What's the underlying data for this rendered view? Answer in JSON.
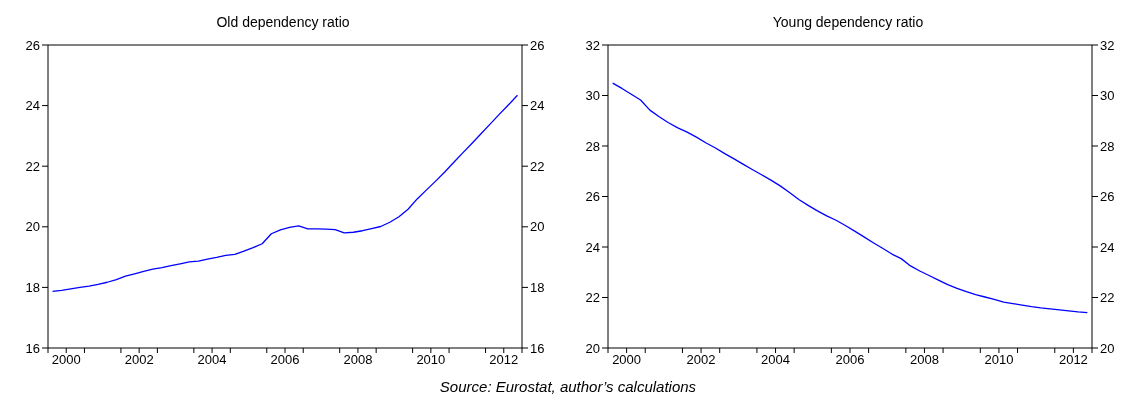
{
  "chart_data": [
    {
      "type": "line",
      "title": "Old dependency ratio",
      "x": [
        2000.125,
        2000.375,
        2000.625,
        2000.875,
        2001.125,
        2001.375,
        2001.625,
        2001.875,
        2002.125,
        2002.375,
        2002.625,
        2002.875,
        2003.125,
        2003.375,
        2003.625,
        2003.875,
        2004.125,
        2004.375,
        2004.625,
        2004.875,
        2005.125,
        2005.375,
        2005.625,
        2005.875,
        2006.125,
        2006.375,
        2006.625,
        2006.875,
        2007.125,
        2007.375,
        2007.625,
        2007.875,
        2008.125,
        2008.375,
        2008.625,
        2008.875,
        2009.125,
        2009.375,
        2009.625,
        2009.875,
        2010.125,
        2010.375,
        2010.625,
        2010.875,
        2011.125,
        2011.375,
        2011.625,
        2011.875,
        2012.125,
        2012.375,
        2012.625,
        2012.875
      ],
      "series": [
        {
          "color": "#0000ff",
          "values": [
            17.87,
            17.9,
            17.95,
            18.0,
            18.04,
            18.1,
            18.17,
            18.26,
            18.37,
            18.45,
            18.53,
            18.6,
            18.65,
            18.72,
            18.78,
            18.84,
            18.87,
            18.93,
            18.99,
            19.06,
            19.09,
            19.2,
            19.31,
            19.44,
            19.77,
            19.9,
            19.98,
            20.03,
            19.93,
            19.93,
            19.92,
            19.91,
            19.8,
            19.82,
            19.87,
            19.94,
            20.01,
            20.15,
            20.33,
            20.58,
            20.92,
            21.21,
            21.5,
            21.8,
            22.12,
            22.44,
            22.75,
            23.07,
            23.39,
            23.71,
            24.02,
            24.34
          ]
        }
      ],
      "xlim": [
        2000,
        2013
      ],
      "xticks": [
        {
          "value": 2000,
          "label": null
        },
        {
          "value": 2000.5,
          "label": "2000"
        },
        {
          "value": 2001,
          "label": null
        },
        {
          "value": 2002,
          "label": null
        },
        {
          "value": 2002.5,
          "label": "2002"
        },
        {
          "value": 2003,
          "label": null
        },
        {
          "value": 2004,
          "label": null
        },
        {
          "value": 2004.5,
          "label": "2004"
        },
        {
          "value": 2005,
          "label": null
        },
        {
          "value": 2006,
          "label": null
        },
        {
          "value": 2006.5,
          "label": "2006"
        },
        {
          "value": 2007,
          "label": null
        },
        {
          "value": 2008,
          "label": null
        },
        {
          "value": 2008.5,
          "label": "2008"
        },
        {
          "value": 2009,
          "label": null
        },
        {
          "value": 2010,
          "label": null
        },
        {
          "value": 2010.5,
          "label": "2010"
        },
        {
          "value": 2011,
          "label": null
        },
        {
          "value": 2012,
          "label": null
        },
        {
          "value": 2012.5,
          "label": "2012"
        },
        {
          "value": 2013,
          "label": null
        }
      ],
      "ylim": [
        16,
        26
      ],
      "yticks": [
        16,
        18,
        20,
        22,
        24,
        26
      ],
      "y2lim": [
        16,
        26
      ],
      "y2ticks": [
        16,
        18,
        20,
        22,
        24,
        26
      ],
      "annotations": [
        "Source: Eurostat, author’s calculations"
      ]
    },
    {
      "type": "line",
      "title": "Young dependency ratio",
      "x": [
        2000.125,
        2000.375,
        2000.625,
        2000.875,
        2001.125,
        2001.375,
        2001.625,
        2001.875,
        2002.125,
        2002.375,
        2002.625,
        2002.875,
        2003.125,
        2003.375,
        2003.625,
        2003.875,
        2004.125,
        2004.375,
        2004.625,
        2004.875,
        2005.125,
        2005.375,
        2005.625,
        2005.875,
        2006.125,
        2006.375,
        2006.625,
        2006.875,
        2007.125,
        2007.375,
        2007.625,
        2007.875,
        2008.125,
        2008.375,
        2008.625,
        2008.875,
        2009.125,
        2009.375,
        2009.625,
        2009.875,
        2010.125,
        2010.375,
        2010.625,
        2010.875,
        2011.125,
        2011.375,
        2011.625,
        2011.875,
        2012.125,
        2012.375,
        2012.625,
        2012.875
      ],
      "series": [
        {
          "color": "#0000ff",
          "values": [
            30.49,
            30.28,
            30.05,
            29.82,
            29.42,
            29.16,
            28.92,
            28.72,
            28.55,
            28.35,
            28.13,
            27.93,
            27.71,
            27.5,
            27.28,
            27.07,
            26.86,
            26.65,
            26.42,
            26.16,
            25.88,
            25.65,
            25.43,
            25.23,
            25.06,
            24.85,
            24.63,
            24.4,
            24.17,
            23.95,
            23.72,
            23.54,
            23.25,
            23.05,
            22.87,
            22.69,
            22.51,
            22.36,
            22.23,
            22.11,
            22.02,
            21.93,
            21.82,
            21.76,
            21.7,
            21.64,
            21.59,
            21.55,
            21.51,
            21.47,
            21.43,
            21.4
          ]
        }
      ],
      "xlim": [
        2000,
        2013
      ],
      "xticks": [
        {
          "value": 2000,
          "label": null
        },
        {
          "value": 2000.5,
          "label": "2000"
        },
        {
          "value": 2001,
          "label": null
        },
        {
          "value": 2002,
          "label": null
        },
        {
          "value": 2002.5,
          "label": "2002"
        },
        {
          "value": 2003,
          "label": null
        },
        {
          "value": 2004,
          "label": null
        },
        {
          "value": 2004.5,
          "label": "2004"
        },
        {
          "value": 2005,
          "label": null
        },
        {
          "value": 2006,
          "label": null
        },
        {
          "value": 2006.5,
          "label": "2006"
        },
        {
          "value": 2007,
          "label": null
        },
        {
          "value": 2008,
          "label": null
        },
        {
          "value": 2008.5,
          "label": "2008"
        },
        {
          "value": 2009,
          "label": null
        },
        {
          "value": 2010,
          "label": null
        },
        {
          "value": 2010.5,
          "label": "2010"
        },
        {
          "value": 2011,
          "label": null
        },
        {
          "value": 2012,
          "label": null
        },
        {
          "value": 2012.5,
          "label": "2012"
        },
        {
          "value": 2013,
          "label": null
        }
      ],
      "ylim": [
        20,
        32
      ],
      "yticks": [
        20,
        22,
        24,
        26,
        28,
        30,
        32
      ],
      "y2lim": [
        20,
        32
      ],
      "y2ticks": [
        20,
        22,
        24,
        26,
        28,
        30,
        32
      ]
    }
  ]
}
